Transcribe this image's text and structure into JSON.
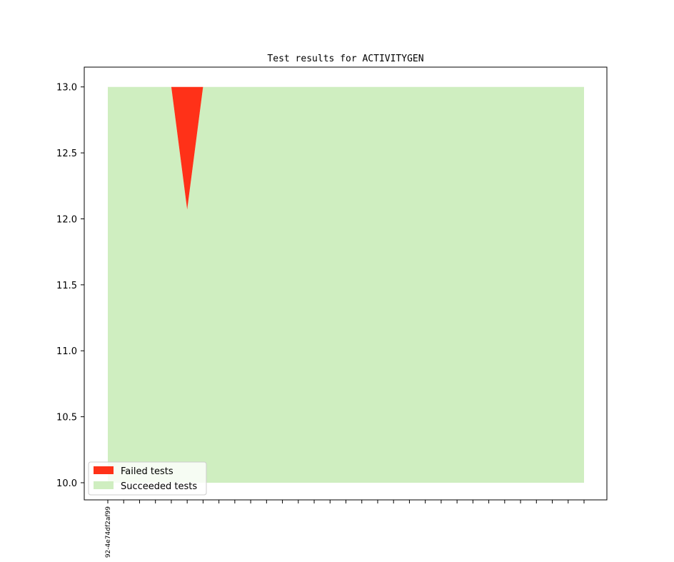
{
  "chart_data": {
    "type": "area",
    "title": "Test results for ACTIVITYGEN",
    "xlabel": "",
    "ylabel": "",
    "ylim": [
      9.87,
      13.15
    ],
    "yticks": [
      10.0,
      10.5,
      11.0,
      11.5,
      12.0,
      12.5,
      13.0
    ],
    "ytick_labels": [
      "10.0",
      "10.5",
      "11.0",
      "11.5",
      "12.0",
      "12.5",
      "13.0"
    ],
    "x_count": 31,
    "x_labels": [
      "92-4e74df2af99"
    ],
    "grid": false,
    "legend_position": "lower-left",
    "baseline": 10,
    "series": [
      {
        "name": "Failed tests",
        "color": "#ff3118",
        "x": [
          0,
          1,
          2,
          3,
          4,
          5,
          6,
          7,
          8,
          9,
          10,
          11,
          12,
          13,
          14,
          15,
          16,
          17,
          18,
          19,
          20,
          21,
          22,
          23,
          24,
          25,
          26,
          27,
          28,
          29,
          30
        ],
        "lower": [
          13,
          13,
          13,
          13,
          13,
          12.07,
          13,
          13,
          13,
          13,
          13,
          13,
          13,
          13,
          13,
          13,
          13,
          13,
          13,
          13,
          13,
          13,
          13,
          13,
          13,
          13,
          13,
          13,
          13,
          13,
          13
        ],
        "upper": [
          13,
          13,
          13,
          13,
          13,
          13,
          13,
          13,
          13,
          13,
          13,
          13,
          13,
          13,
          13,
          13,
          13,
          13,
          13,
          13,
          13,
          13,
          13,
          13,
          13,
          13,
          13,
          13,
          13,
          13,
          13
        ]
      },
      {
        "name": "Succeeded tests",
        "color": "#cfeec0",
        "x": [
          0,
          1,
          2,
          3,
          4,
          5,
          6,
          7,
          8,
          9,
          10,
          11,
          12,
          13,
          14,
          15,
          16,
          17,
          18,
          19,
          20,
          21,
          22,
          23,
          24,
          25,
          26,
          27,
          28,
          29,
          30
        ],
        "lower": [
          10,
          10,
          10,
          10,
          10,
          10,
          10,
          10,
          10,
          10,
          10,
          10,
          10,
          10,
          10,
          10,
          10,
          10,
          10,
          10,
          10,
          10,
          10,
          10,
          10,
          10,
          10,
          10,
          10,
          10,
          10
        ],
        "upper": [
          13,
          13,
          13,
          13,
          13,
          12.07,
          13,
          13,
          13,
          13,
          13,
          13,
          13,
          13,
          13,
          13,
          13,
          13,
          13,
          13,
          13,
          13,
          13,
          13,
          13,
          13,
          13,
          13,
          13,
          13,
          13
        ]
      }
    ]
  }
}
